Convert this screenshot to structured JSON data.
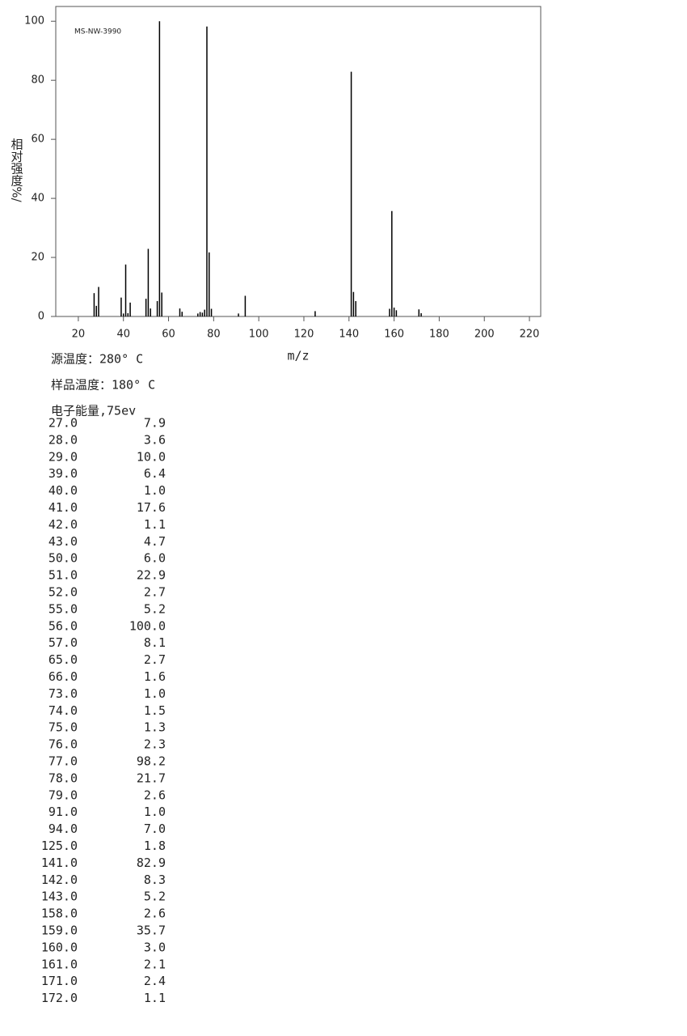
{
  "chart_data": {
    "type": "stem",
    "annotation": "MS-NW-3990",
    "y_label": "相对强度%/",
    "x_label": "m/z",
    "color": "#000000",
    "x": [
      27,
      28,
      29,
      39,
      40,
      41,
      42,
      43,
      50,
      51,
      52,
      55,
      56,
      57,
      65,
      66,
      73,
      74,
      75,
      76,
      77,
      78,
      79,
      91,
      94,
      125,
      141,
      142,
      143,
      158,
      159,
      160,
      161,
      171,
      172
    ],
    "values": [
      7.9,
      3.6,
      10.0,
      6.4,
      1.0,
      17.6,
      1.1,
      4.7,
      6.0,
      22.9,
      2.7,
      5.2,
      100.0,
      8.1,
      2.7,
      1.6,
      1.0,
      1.5,
      1.3,
      2.3,
      98.2,
      21.7,
      2.6,
      1.0,
      7.0,
      1.8,
      82.9,
      8.3,
      5.2,
      2.6,
      35.7,
      3.0,
      2.1,
      2.4,
      1.1
    ],
    "xlim": [
      10,
      225
    ],
    "ylim": [
      0,
      105
    ],
    "xticks": [
      20,
      40,
      60,
      80,
      100,
      120,
      140,
      160,
      180,
      200,
      220
    ],
    "yticks": [
      0,
      20,
      40,
      60,
      80,
      100
    ]
  },
  "info": [
    "源温度：280° C",
    "样品温度：180° C",
    "电子能量,75ev"
  ],
  "table": {
    "rows": [
      [
        "27.0",
        "7.9"
      ],
      [
        "28.0",
        "3.6"
      ],
      [
        "29.0",
        "10.0"
      ],
      [
        "39.0",
        "6.4"
      ],
      [
        "40.0",
        "1.0"
      ],
      [
        "41.0",
        "17.6"
      ],
      [
        "42.0",
        "1.1"
      ],
      [
        "43.0",
        "4.7"
      ],
      [
        "50.0",
        "6.0"
      ],
      [
        "51.0",
        "22.9"
      ],
      [
        "52.0",
        "2.7"
      ],
      [
        "55.0",
        "5.2"
      ],
      [
        "56.0",
        "100.0"
      ],
      [
        "57.0",
        "8.1"
      ],
      [
        "65.0",
        "2.7"
      ],
      [
        "66.0",
        "1.6"
      ],
      [
        "73.0",
        "1.0"
      ],
      [
        "74.0",
        "1.5"
      ],
      [
        "75.0",
        "1.3"
      ],
      [
        "76.0",
        "2.3"
      ],
      [
        "77.0",
        "98.2"
      ],
      [
        "78.0",
        "21.7"
      ],
      [
        "79.0",
        "2.6"
      ],
      [
        "91.0",
        "1.0"
      ],
      [
        "94.0",
        "7.0"
      ],
      [
        "125.0",
        "1.8"
      ],
      [
        "141.0",
        "82.9"
      ],
      [
        "142.0",
        "8.3"
      ],
      [
        "143.0",
        "5.2"
      ],
      [
        "158.0",
        "2.6"
      ],
      [
        "159.0",
        "35.7"
      ],
      [
        "160.0",
        "3.0"
      ],
      [
        "161.0",
        "2.1"
      ],
      [
        "171.0",
        "2.4"
      ],
      [
        "172.0",
        "1.1"
      ]
    ]
  }
}
